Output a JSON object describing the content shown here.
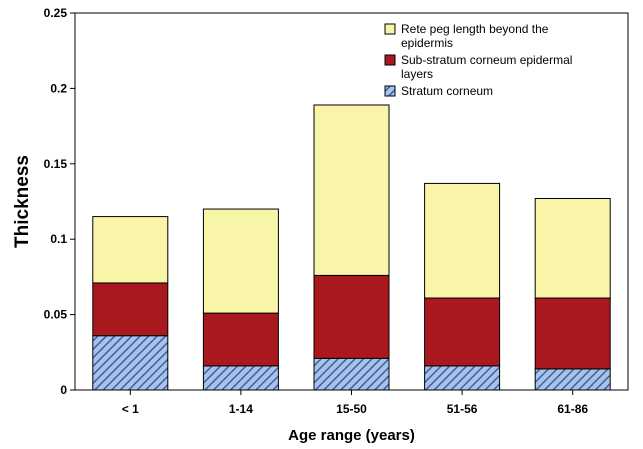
{
  "chart_data": {
    "type": "bar",
    "stacked": true,
    "title": "",
    "xlabel": "Age range (years)",
    "ylabel": "Thickness",
    "ylim": [
      0,
      0.25
    ],
    "yticks": [
      "0",
      "0.05",
      "0.1",
      "0.15",
      "0.2",
      "0.25"
    ],
    "categories": [
      "< 1",
      "1-14",
      "15-50",
      "51-56",
      "61-86"
    ],
    "series": [
      {
        "name": "Stratum corneum",
        "values": [
          0.036,
          0.016,
          0.021,
          0.016,
          0.014
        ],
        "color": "#a9c3e6",
        "hatch": "#3b5fa8"
      },
      {
        "name": "Sub-stratum corneum epidermal layers",
        "values": [
          0.035,
          0.035,
          0.055,
          0.045,
          0.047
        ],
        "color": "#a8181c"
      },
      {
        "name": "Rete peg length beyond the epidermis",
        "values": [
          0.044,
          0.069,
          0.113,
          0.076,
          0.066
        ],
        "color": "#f8f4a8"
      }
    ],
    "legend_position": "top-right",
    "legend_order": [
      2,
      1,
      0
    ],
    "legend_lines": [
      [
        "Rete peg length beyond the",
        "epidermis"
      ],
      [
        "Sub-stratum corneum epidermal",
        "layers"
      ],
      [
        "Stratum corneum"
      ]
    ],
    "grid": false
  }
}
